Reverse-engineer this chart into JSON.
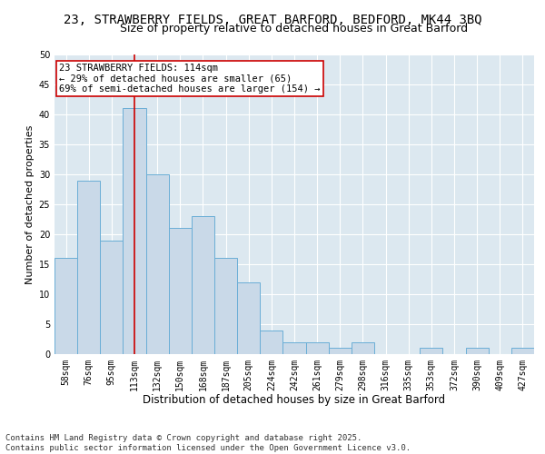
{
  "title": "23, STRAWBERRY FIELDS, GREAT BARFORD, BEDFORD, MK44 3BQ",
  "subtitle": "Size of property relative to detached houses in Great Barford",
  "xlabel": "Distribution of detached houses by size in Great Barford",
  "ylabel": "Number of detached properties",
  "categories": [
    "58sqm",
    "76sqm",
    "95sqm",
    "113sqm",
    "132sqm",
    "150sqm",
    "168sqm",
    "187sqm",
    "205sqm",
    "224sqm",
    "242sqm",
    "261sqm",
    "279sqm",
    "298sqm",
    "316sqm",
    "335sqm",
    "353sqm",
    "372sqm",
    "390sqm",
    "409sqm",
    "427sqm"
  ],
  "values": [
    16,
    29,
    19,
    41,
    30,
    21,
    23,
    16,
    12,
    4,
    2,
    2,
    1,
    2,
    0,
    0,
    1,
    0,
    1,
    0,
    1
  ],
  "bar_color": "#c9d9e8",
  "bar_edge_color": "#6aaed6",
  "vline_x_index": 3,
  "vline_color": "#cc0000",
  "annotation_line1": "23 STRAWBERRY FIELDS: 114sqm",
  "annotation_line2": "← 29% of detached houses are smaller (65)",
  "annotation_line3": "69% of semi-detached houses are larger (154) →",
  "annotation_box_color": "#ffffff",
  "annotation_box_edge": "#cc0000",
  "ylim": [
    0,
    50
  ],
  "yticks": [
    0,
    5,
    10,
    15,
    20,
    25,
    30,
    35,
    40,
    45,
    50
  ],
  "bg_color": "#dce8f0",
  "footer": "Contains HM Land Registry data © Crown copyright and database right 2025.\nContains public sector information licensed under the Open Government Licence v3.0.",
  "title_fontsize": 10,
  "subtitle_fontsize": 9,
  "xlabel_fontsize": 8.5,
  "ylabel_fontsize": 8,
  "tick_fontsize": 7,
  "annotation_fontsize": 7.5,
  "footer_fontsize": 6.5
}
